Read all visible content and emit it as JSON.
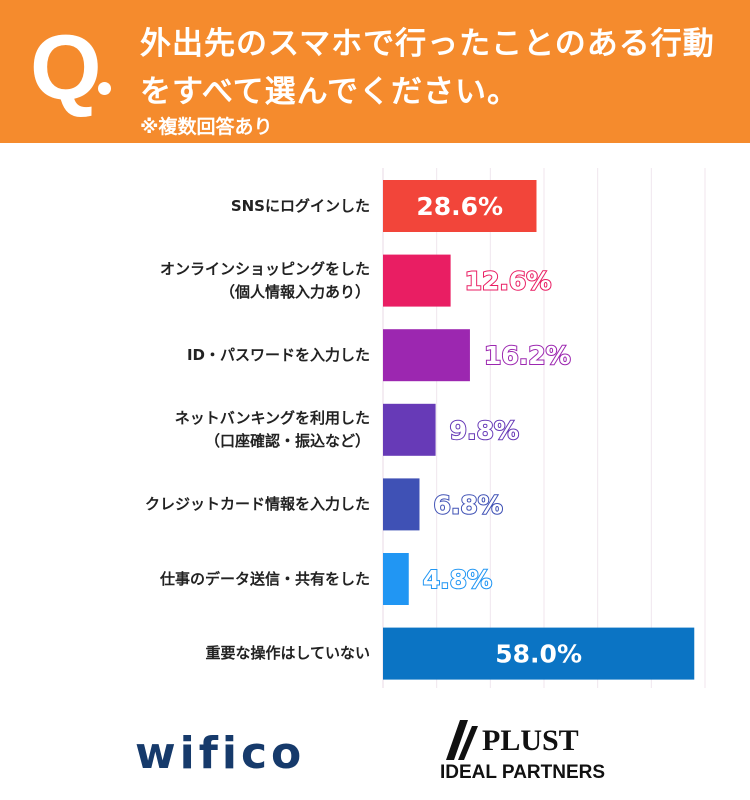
{
  "header": {
    "q_mark": "Q",
    "title": "外出先のスマホで行ったことのある行動をすべて選んでください。",
    "subtitle": "※複数回答あり"
  },
  "chart_data": {
    "type": "bar",
    "orientation": "horizontal",
    "categories": [
      [
        "SNSにログインした"
      ],
      [
        "オンラインショッピングをした",
        "（個人情報入力あり）"
      ],
      [
        "ID・パスワードを入力した"
      ],
      [
        "ネットバンキングを利用した",
        "（口座確認・振込など）"
      ],
      [
        "クレジットカード情報を入力した"
      ],
      [
        "仕事のデータ送信・共有をした"
      ],
      [
        "重要な操作はしていない"
      ]
    ],
    "values": [
      28.6,
      12.6,
      16.2,
      9.8,
      6.8,
      4.8,
      58.0
    ],
    "data_labels": [
      "28.6%",
      "12.6%",
      "16.2%",
      "9.8%",
      "6.8%",
      "4.8%",
      "58.0%"
    ],
    "colors": [
      "#F2453A",
      "#E91E63",
      "#9C27B0",
      "#673AB7",
      "#3F51B5",
      "#2196F3",
      "#0B74C4"
    ],
    "xlim": [
      0,
      60
    ],
    "grid": true,
    "grid_step": 10
  },
  "logos": {
    "left": "wifico",
    "right_top": "PLUST",
    "right_bottom": "IDEAL PARTNERS"
  }
}
